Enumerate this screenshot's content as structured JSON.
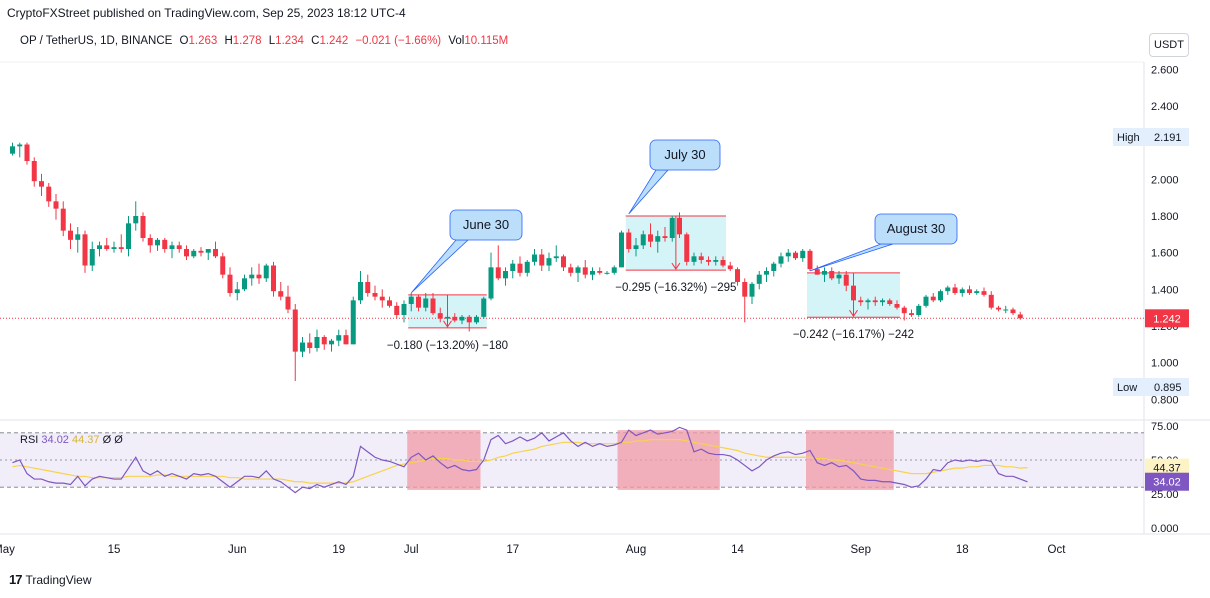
{
  "header": {
    "text": "CryptoFXStreet published on TradingView.com, Sep 25, 2023 18:12 UTC-4"
  },
  "legend": {
    "symbol": "OP / TetherUS, 1D, BINANCE",
    "open_label": "O",
    "open": "1.263",
    "high_label": "H",
    "high": "1.278",
    "low_label": "L",
    "low": "1.234",
    "close_label": "C",
    "close": "1.242",
    "change": "−0.021 (−1.66%)",
    "vol_label": "Vol",
    "vol": "10.115M"
  },
  "currency": "USDT",
  "footer": {
    "logo": "17",
    "brand": "TradingView"
  },
  "colors": {
    "up": "#089981",
    "down": "#f23645",
    "rsi": "#7e57c2",
    "rsi_ma": "#f7d34a",
    "box": "#b2ebf2",
    "rsi_box": "#ef9aa5"
  },
  "chart_data": [
    {
      "type": "candlestick",
      "title": "OP / TetherUS, 1D, BINANCE",
      "ylim": [
        0.72,
        2.64
      ],
      "yticks": [
        "0.800",
        "1.000",
        "1.200",
        "1.400",
        "1.600",
        "1.800",
        "2.000",
        "2.400",
        "2.600"
      ],
      "xticks": [
        "May",
        "15",
        "Jun",
        "19",
        "Jul",
        "17",
        "Aug",
        "14",
        "Sep",
        "18",
        "Oct"
      ],
      "xtick_index": [
        0,
        14,
        31,
        45,
        55,
        69,
        86,
        100,
        117,
        131,
        144
      ],
      "price_labels": {
        "high_label": "High",
        "high": "2.191",
        "low_label": "Low",
        "low": "0.895",
        "last": "1.242"
      },
      "candles": [
        [
          2.14,
          2.2,
          2.13,
          2.18
        ],
        [
          2.18,
          2.2,
          2.12,
          2.19
        ],
        [
          2.19,
          2.2,
          2.08,
          2.1
        ],
        [
          2.1,
          2.12,
          1.96,
          1.99
        ],
        [
          1.99,
          2.03,
          1.91,
          1.96
        ],
        [
          1.96,
          1.98,
          1.85,
          1.88
        ],
        [
          1.88,
          1.92,
          1.78,
          1.84
        ],
        [
          1.84,
          1.88,
          1.69,
          1.72
        ],
        [
          1.72,
          1.76,
          1.62,
          1.67
        ],
        [
          1.67,
          1.74,
          1.6,
          1.7
        ],
        [
          1.7,
          1.72,
          1.49,
          1.53
        ],
        [
          1.53,
          1.66,
          1.5,
          1.62
        ],
        [
          1.62,
          1.66,
          1.58,
          1.64
        ],
        [
          1.64,
          1.68,
          1.61,
          1.62
        ],
        [
          1.62,
          1.66,
          1.6,
          1.63
        ],
        [
          1.63,
          1.7,
          1.6,
          1.62
        ],
        [
          1.62,
          1.8,
          1.58,
          1.76
        ],
        [
          1.76,
          1.88,
          1.72,
          1.8
        ],
        [
          1.8,
          1.82,
          1.66,
          1.68
        ],
        [
          1.68,
          1.7,
          1.6,
          1.64
        ],
        [
          1.64,
          1.68,
          1.61,
          1.67
        ],
        [
          1.67,
          1.68,
          1.6,
          1.62
        ],
        [
          1.62,
          1.66,
          1.57,
          1.64
        ],
        [
          1.64,
          1.66,
          1.6,
          1.62
        ],
        [
          1.62,
          1.64,
          1.56,
          1.58
        ],
        [
          1.58,
          1.62,
          1.57,
          1.61
        ],
        [
          1.61,
          1.63,
          1.58,
          1.6
        ],
        [
          1.6,
          1.62,
          1.56,
          1.62
        ],
        [
          1.62,
          1.66,
          1.57,
          1.58
        ],
        [
          1.58,
          1.6,
          1.46,
          1.48
        ],
        [
          1.48,
          1.52,
          1.36,
          1.38
        ],
        [
          1.38,
          1.44,
          1.34,
          1.4
        ],
        [
          1.4,
          1.48,
          1.39,
          1.46
        ],
        [
          1.46,
          1.52,
          1.42,
          1.48
        ],
        [
          1.48,
          1.54,
          1.43,
          1.46
        ],
        [
          1.46,
          1.54,
          1.44,
          1.53
        ],
        [
          1.53,
          1.55,
          1.36,
          1.39
        ],
        [
          1.39,
          1.44,
          1.34,
          1.36
        ],
        [
          1.36,
          1.42,
          1.27,
          1.29
        ],
        [
          1.29,
          1.32,
          0.9,
          1.06
        ],
        [
          1.06,
          1.14,
          1.03,
          1.11
        ],
        [
          1.11,
          1.16,
          1.05,
          1.08
        ],
        [
          1.08,
          1.18,
          1.06,
          1.14
        ],
        [
          1.14,
          1.15,
          1.07,
          1.1
        ],
        [
          1.1,
          1.13,
          1.06,
          1.12
        ],
        [
          1.12,
          1.18,
          1.09,
          1.15
        ],
        [
          1.15,
          1.18,
          1.1,
          1.1
        ],
        [
          1.1,
          1.36,
          1.1,
          1.34
        ],
        [
          1.34,
          1.5,
          1.32,
          1.44
        ],
        [
          1.44,
          1.48,
          1.36,
          1.38
        ],
        [
          1.38,
          1.42,
          1.34,
          1.36
        ],
        [
          1.36,
          1.4,
          1.3,
          1.34
        ],
        [
          1.34,
          1.36,
          1.3,
          1.31
        ],
        [
          1.31,
          1.33,
          1.24,
          1.26
        ],
        [
          1.26,
          1.34,
          1.22,
          1.32
        ],
        [
          1.32,
          1.38,
          1.28,
          1.36
        ],
        [
          1.36,
          1.37,
          1.28,
          1.3
        ],
        [
          1.3,
          1.38,
          1.28,
          1.35
        ],
        [
          1.35,
          1.38,
          1.26,
          1.27
        ],
        [
          1.27,
          1.3,
          1.22,
          1.24
        ],
        [
          1.24,
          1.27,
          1.21,
          1.25
        ],
        [
          1.25,
          1.27,
          1.22,
          1.23
        ],
        [
          1.23,
          1.26,
          1.21,
          1.25
        ],
        [
          1.25,
          1.26,
          1.17,
          1.22
        ],
        [
          1.22,
          1.26,
          1.21,
          1.25
        ],
        [
          1.25,
          1.36,
          1.24,
          1.35
        ],
        [
          1.35,
          1.6,
          1.34,
          1.52
        ],
        [
          1.52,
          1.64,
          1.45,
          1.46
        ],
        [
          1.46,
          1.52,
          1.42,
          1.5
        ],
        [
          1.5,
          1.56,
          1.46,
          1.54
        ],
        [
          1.54,
          1.58,
          1.47,
          1.49
        ],
        [
          1.49,
          1.56,
          1.47,
          1.55
        ],
        [
          1.55,
          1.62,
          1.53,
          1.59
        ],
        [
          1.59,
          1.62,
          1.5,
          1.53
        ],
        [
          1.53,
          1.6,
          1.5,
          1.57
        ],
        [
          1.57,
          1.64,
          1.55,
          1.58
        ],
        [
          1.58,
          1.59,
          1.5,
          1.52
        ],
        [
          1.52,
          1.54,
          1.47,
          1.49
        ],
        [
          1.49,
          1.53,
          1.44,
          1.52
        ],
        [
          1.52,
          1.56,
          1.46,
          1.48
        ],
        [
          1.48,
          1.52,
          1.45,
          1.5
        ],
        [
          1.5,
          1.52,
          1.48,
          1.49
        ],
        [
          1.49,
          1.5,
          1.48,
          1.49
        ],
        [
          1.49,
          1.53,
          1.48,
          1.52
        ],
        [
          1.52,
          1.72,
          1.52,
          1.71
        ],
        [
          1.71,
          1.73,
          1.6,
          1.62
        ],
        [
          1.62,
          1.68,
          1.58,
          1.64
        ],
        [
          1.64,
          1.72,
          1.62,
          1.7
        ],
        [
          1.7,
          1.76,
          1.63,
          1.66
        ],
        [
          1.66,
          1.72,
          1.6,
          1.69
        ],
        [
          1.69,
          1.74,
          1.66,
          1.68
        ],
        [
          1.68,
          1.8,
          1.66,
          1.79
        ],
        [
          1.79,
          1.82,
          1.68,
          1.7
        ],
        [
          1.7,
          1.71,
          1.53,
          1.55
        ],
        [
          1.55,
          1.6,
          1.53,
          1.58
        ],
        [
          1.58,
          1.6,
          1.54,
          1.56
        ],
        [
          1.56,
          1.58,
          1.53,
          1.55
        ],
        [
          1.55,
          1.58,
          1.53,
          1.56
        ],
        [
          1.56,
          1.58,
          1.52,
          1.53
        ],
        [
          1.53,
          1.55,
          1.5,
          1.51
        ],
        [
          1.51,
          1.52,
          1.42,
          1.44
        ],
        [
          1.44,
          1.46,
          1.22,
          1.36
        ],
        [
          1.36,
          1.44,
          1.32,
          1.43
        ],
        [
          1.43,
          1.5,
          1.4,
          1.48
        ],
        [
          1.48,
          1.52,
          1.44,
          1.5
        ],
        [
          1.5,
          1.55,
          1.47,
          1.54
        ],
        [
          1.54,
          1.6,
          1.52,
          1.58
        ],
        [
          1.58,
          1.62,
          1.55,
          1.6
        ],
        [
          1.6,
          1.61,
          1.56,
          1.57
        ],
        [
          1.57,
          1.62,
          1.55,
          1.61
        ],
        [
          1.61,
          1.62,
          1.5,
          1.51
        ],
        [
          1.51,
          1.53,
          1.48,
          1.48
        ],
        [
          1.48,
          1.52,
          1.44,
          1.5
        ],
        [
          1.5,
          1.52,
          1.45,
          1.46
        ],
        [
          1.46,
          1.5,
          1.43,
          1.48
        ],
        [
          1.48,
          1.5,
          1.39,
          1.42
        ],
        [
          1.42,
          1.44,
          1.32,
          1.34
        ],
        [
          1.34,
          1.36,
          1.31,
          1.33
        ],
        [
          1.33,
          1.35,
          1.29,
          1.34
        ],
        [
          1.34,
          1.36,
          1.31,
          1.33
        ],
        [
          1.33,
          1.35,
          1.31,
          1.34
        ],
        [
          1.34,
          1.35,
          1.31,
          1.32
        ],
        [
          1.32,
          1.34,
          1.29,
          1.3
        ],
        [
          1.3,
          1.31,
          1.23,
          1.27
        ],
        [
          1.27,
          1.29,
          1.25,
          1.26
        ],
        [
          1.26,
          1.32,
          1.25,
          1.31
        ],
        [
          1.31,
          1.37,
          1.3,
          1.36
        ],
        [
          1.36,
          1.38,
          1.33,
          1.34
        ],
        [
          1.34,
          1.4,
          1.33,
          1.39
        ],
        [
          1.39,
          1.42,
          1.37,
          1.41
        ],
        [
          1.41,
          1.43,
          1.37,
          1.38
        ],
        [
          1.38,
          1.41,
          1.36,
          1.4
        ],
        [
          1.4,
          1.42,
          1.37,
          1.38
        ],
        [
          1.38,
          1.4,
          1.37,
          1.39
        ],
        [
          1.39,
          1.41,
          1.36,
          1.37
        ],
        [
          1.37,
          1.39,
          1.29,
          1.3
        ],
        [
          1.3,
          1.31,
          1.28,
          1.29
        ],
        [
          1.29,
          1.31,
          1.27,
          1.29
        ],
        [
          1.29,
          1.3,
          1.26,
          1.27
        ],
        [
          1.263,
          1.278,
          1.234,
          1.242
        ]
      ],
      "annotations": [
        {
          "label": "June 30",
          "measure": "−0.180 (−13.20%) −180",
          "start": 55,
          "end": 65,
          "top": 1.37,
          "bottom": 1.19
        },
        {
          "label": "July 30",
          "measure": "−0.295 (−16.32%) −295",
          "start": 85,
          "end": 98,
          "top": 1.8,
          "bottom": 1.505
        },
        {
          "label": "August 30",
          "measure": "−0.242 (−16.17%) −242",
          "start": 110,
          "end": 122,
          "top": 1.49,
          "bottom": 1.248
        }
      ]
    },
    {
      "type": "line",
      "title": "RSI",
      "legend": {
        "name": "RSI",
        "rsi": "34.02",
        "ma": "44.37",
        "extra1": "Ø",
        "extra2": "Ø"
      },
      "ylim": [
        0,
        75
      ],
      "yticks": [
        "0.000",
        "25.00",
        "50.00",
        "75.00"
      ],
      "last_labels": {
        "rsi": "34.02",
        "ma": "44.37"
      },
      "series": [
        {
          "name": "RSI",
          "values": [
            48,
            50,
            40,
            36,
            36,
            34,
            33,
            33,
            32,
            38,
            31,
            36,
            38,
            37,
            36,
            36,
            44,
            52,
            42,
            39,
            42,
            38,
            40,
            38,
            36,
            40,
            39,
            40,
            38,
            34,
            30,
            34,
            38,
            38,
            37,
            42,
            36,
            34,
            30,
            26,
            30,
            29,
            32,
            30,
            32,
            34,
            32,
            38,
            60,
            56,
            52,
            50,
            49,
            47,
            45,
            52,
            55,
            50,
            53,
            48,
            44,
            46,
            43,
            42,
            43,
            50,
            65,
            68,
            62,
            64,
            67,
            64,
            66,
            70,
            64,
            67,
            70,
            64,
            60,
            63,
            60,
            62,
            60,
            61,
            63,
            72,
            68,
            70,
            72,
            69,
            70,
            71,
            74,
            72,
            56,
            58,
            55,
            54,
            54,
            53,
            50,
            46,
            42,
            45,
            50,
            53,
            55,
            56,
            54,
            55,
            57,
            48,
            46,
            48,
            45,
            46,
            42,
            36,
            35,
            35,
            34,
            34,
            33,
            32,
            30,
            31,
            36,
            43,
            42,
            48,
            50,
            49,
            50,
            49,
            50,
            49,
            40,
            38,
            38,
            36,
            34
          ]
        },
        {
          "name": "MA",
          "values": [
            45,
            46,
            45,
            44,
            43,
            42,
            41,
            40,
            39,
            38,
            38,
            37,
            37,
            37,
            37,
            37,
            38,
            38,
            38,
            38,
            39,
            39,
            38,
            38,
            38,
            38,
            38,
            38,
            38,
            38,
            37,
            37,
            36,
            36,
            36,
            36,
            36,
            36,
            35,
            34,
            34,
            33,
            33,
            33,
            33,
            33,
            33,
            34,
            36,
            38,
            40,
            42,
            44,
            46,
            47,
            48,
            49,
            50,
            51,
            51,
            51,
            50,
            50,
            49,
            49,
            49,
            50,
            52,
            53,
            55,
            56,
            57,
            58,
            60,
            61,
            62,
            63,
            63,
            63,
            62,
            62,
            62,
            62,
            62,
            63,
            63,
            64,
            64,
            65,
            65,
            65,
            65,
            65,
            64,
            63,
            62,
            61,
            60,
            59,
            58,
            57,
            55,
            54,
            53,
            52,
            52,
            52,
            52,
            52,
            52,
            52,
            51,
            51,
            50,
            50,
            49,
            48,
            47,
            46,
            45,
            44,
            43,
            42,
            41,
            40,
            40,
            40,
            41,
            42,
            43,
            44,
            44,
            45,
            45,
            46,
            46,
            46,
            45,
            45,
            44,
            44.37
          ]
        }
      ],
      "highlight_ranges": [
        [
          55,
          64
        ],
        [
          84,
          97
        ],
        [
          110,
          121
        ]
      ]
    }
  ]
}
